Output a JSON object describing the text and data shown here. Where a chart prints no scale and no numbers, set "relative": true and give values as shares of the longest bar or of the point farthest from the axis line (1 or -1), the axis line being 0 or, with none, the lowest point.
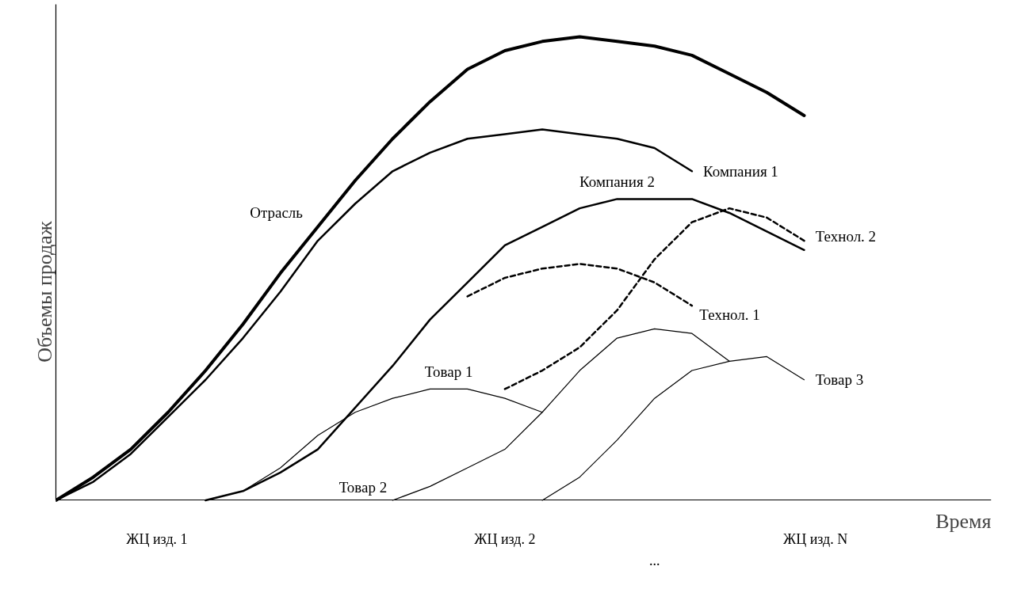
{
  "chart_data": {
    "type": "line",
    "relative": true,
    "xlabel": "Время",
    "ylabel": "Объемы продаж",
    "marker": "none",
    "categories": [
      null,
      null,
      null,
      null,
      null,
      null,
      null,
      null,
      null,
      null,
      null,
      null,
      null,
      null,
      null,
      null,
      null,
      null,
      null,
      null,
      null,
      null,
      null,
      null,
      null,
      null
    ],
    "series": [
      {
        "name": "Отрасль",
        "color": "#000000",
        "line_style": "solid",
        "values": [
          0,
          0.05,
          0.11,
          0.19,
          0.28,
          0.38,
          0.49,
          0.59,
          0.69,
          0.78,
          0.86,
          0.93,
          0.97,
          0.99,
          1.0,
          0.99,
          0.98,
          0.96,
          0.92,
          0.88,
          0.83,
          null,
          null,
          null,
          null,
          null
        ]
      },
      {
        "name": "Компания 1",
        "color": "#000000",
        "line_style": "solid",
        "values": [
          0,
          0.04,
          0.1,
          0.18,
          0.26,
          0.35,
          0.45,
          0.56,
          0.64,
          0.71,
          0.75,
          0.78,
          0.79,
          0.8,
          0.79,
          0.78,
          0.76,
          0.71,
          null,
          null,
          null,
          null,
          null,
          null,
          null,
          null
        ]
      },
      {
        "name": "Компания 2",
        "color": "#000000",
        "line_style": "solid",
        "values": [
          null,
          null,
          null,
          null,
          0,
          0.02,
          0.06,
          0.11,
          0.2,
          0.29,
          0.39,
          0.47,
          0.55,
          0.59,
          0.63,
          0.65,
          0.65,
          0.65,
          0.62,
          0.58,
          0.54,
          null,
          null,
          null,
          null,
          null
        ]
      },
      {
        "name": "Технол. 1",
        "color": "#000000",
        "line_style": "dashed",
        "values": [
          null,
          null,
          null,
          null,
          null,
          null,
          null,
          null,
          null,
          null,
          null,
          0.44,
          0.48,
          0.5,
          0.51,
          0.5,
          0.47,
          0.42,
          null,
          null,
          null,
          null,
          null,
          null,
          null,
          null
        ]
      },
      {
        "name": "Технол. 2",
        "color": "#000000",
        "line_style": "dashed",
        "values": [
          null,
          null,
          null,
          null,
          null,
          null,
          null,
          null,
          null,
          null,
          null,
          null,
          0.24,
          0.28,
          0.33,
          0.41,
          0.52,
          0.6,
          0.63,
          0.61,
          0.56,
          null,
          null,
          null,
          null,
          null
        ]
      },
      {
        "name": "Товар 3",
        "color": "#000000",
        "line_style": "solid",
        "values": [
          null,
          null,
          null,
          null,
          null,
          null,
          null,
          null,
          null,
          null,
          null,
          null,
          null,
          0,
          0.05,
          0.13,
          0.22,
          0.28,
          0.3,
          0.31,
          0.26,
          null,
          null,
          null,
          null,
          null
        ]
      },
      {
        "name": "Товар 2",
        "color": "#000000",
        "line_style": "solid",
        "values": [
          null,
          null,
          null,
          null,
          null,
          null,
          null,
          null,
          null,
          0,
          0.03,
          0.07,
          0.11,
          0.19,
          0.28,
          0.35,
          0.37,
          0.36,
          0.3,
          null,
          null,
          null,
          null,
          null,
          null,
          null
        ]
      },
      {
        "name": "Товар 1",
        "color": "#000000",
        "line_style": "solid",
        "values": [
          null,
          null,
          null,
          null,
          0,
          0.02,
          0.07,
          0.14,
          0.19,
          0.22,
          0.24,
          0.24,
          0.22,
          0.19,
          null,
          null,
          null,
          null,
          null,
          null,
          null,
          null,
          null,
          null,
          null,
          null
        ]
      }
    ],
    "annotations": [
      "ЖЦ изд. 1",
      "ЖЦ изд. 2",
      "...",
      "ЖЦ изд. N"
    ]
  }
}
